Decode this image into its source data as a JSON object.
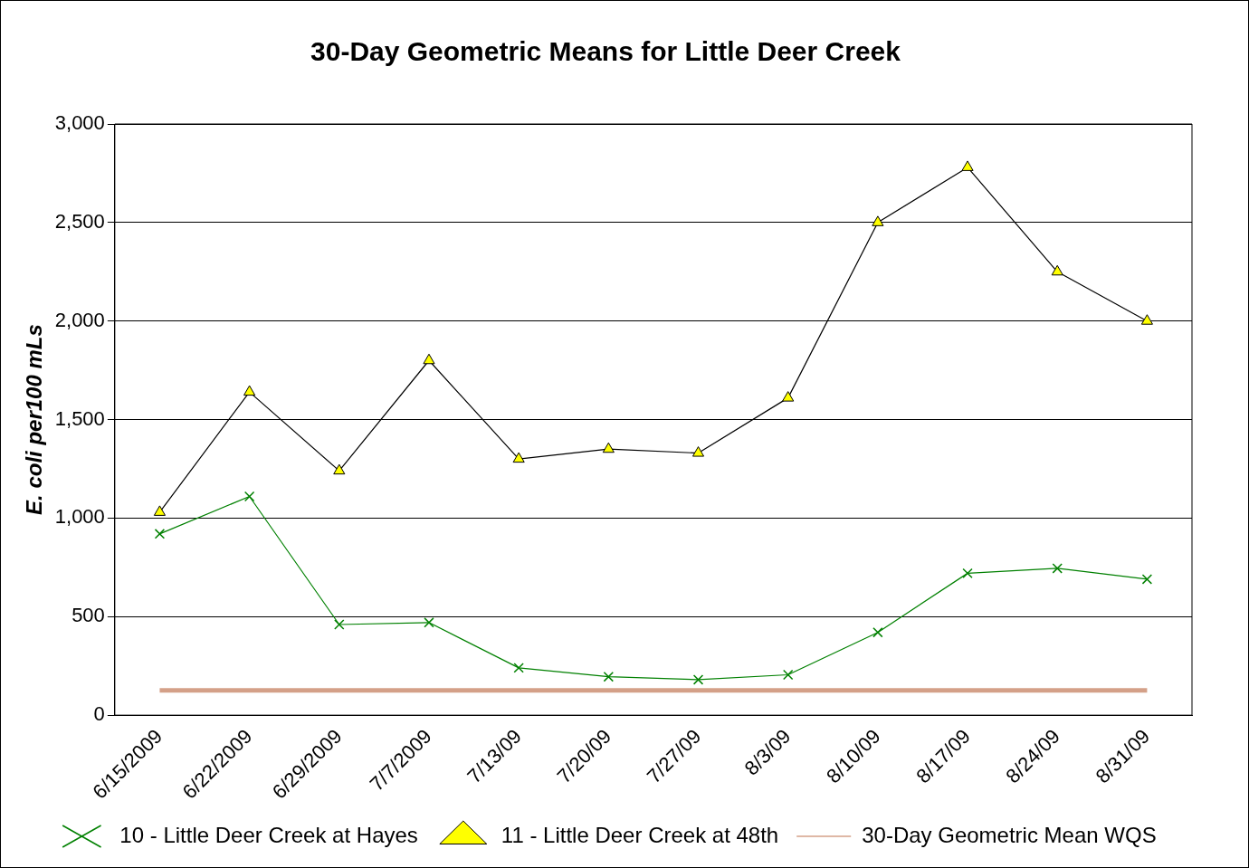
{
  "chart_data": {
    "type": "line",
    "title": "30-Day Geometric Means for Little Deer Creek",
    "ylabel": "E. coli per100 mLs",
    "categories": [
      "6/15/2009",
      "6/22/2009",
      "6/29/2009",
      "7/7/2009",
      "7/13/09",
      "7/20/09",
      "7/27/09",
      "8/3/09",
      "8/10/09",
      "8/17/09",
      "8/24/09",
      "8/31/09"
    ],
    "series": [
      {
        "name": "10 - Little Deer Creek at Hayes",
        "color": "#008000",
        "marker": "cross",
        "values": [
          920,
          1110,
          460,
          470,
          240,
          195,
          180,
          205,
          420,
          720,
          745,
          690
        ]
      },
      {
        "name": "11 - Little Deer Creek at 48th",
        "color": "#ffff00",
        "marker": "triangle",
        "values": [
          1030,
          1640,
          1240,
          1800,
          1300,
          1350,
          1330,
          1610,
          2500,
          2780,
          2250,
          2000
        ]
      },
      {
        "name": "30-Day Geometric Mean WQS",
        "color": "#d4a088",
        "marker": "none",
        "values": [
          126,
          126,
          126,
          126,
          126,
          126,
          126,
          126,
          126,
          126,
          126,
          126
        ]
      }
    ],
    "ylim": [
      0,
      3000
    ],
    "yticks": [
      {
        "value": 0,
        "label": "0"
      },
      {
        "value": 500,
        "label": "500"
      },
      {
        "value": 1000,
        "label": "1,000"
      },
      {
        "value": 1500,
        "label": "1,500"
      },
      {
        "value": 2000,
        "label": "2,000"
      },
      {
        "value": 2500,
        "label": "2,500"
      },
      {
        "value": 3000,
        "label": "3,000"
      }
    ],
    "grid": "y",
    "legend": "bottom"
  }
}
